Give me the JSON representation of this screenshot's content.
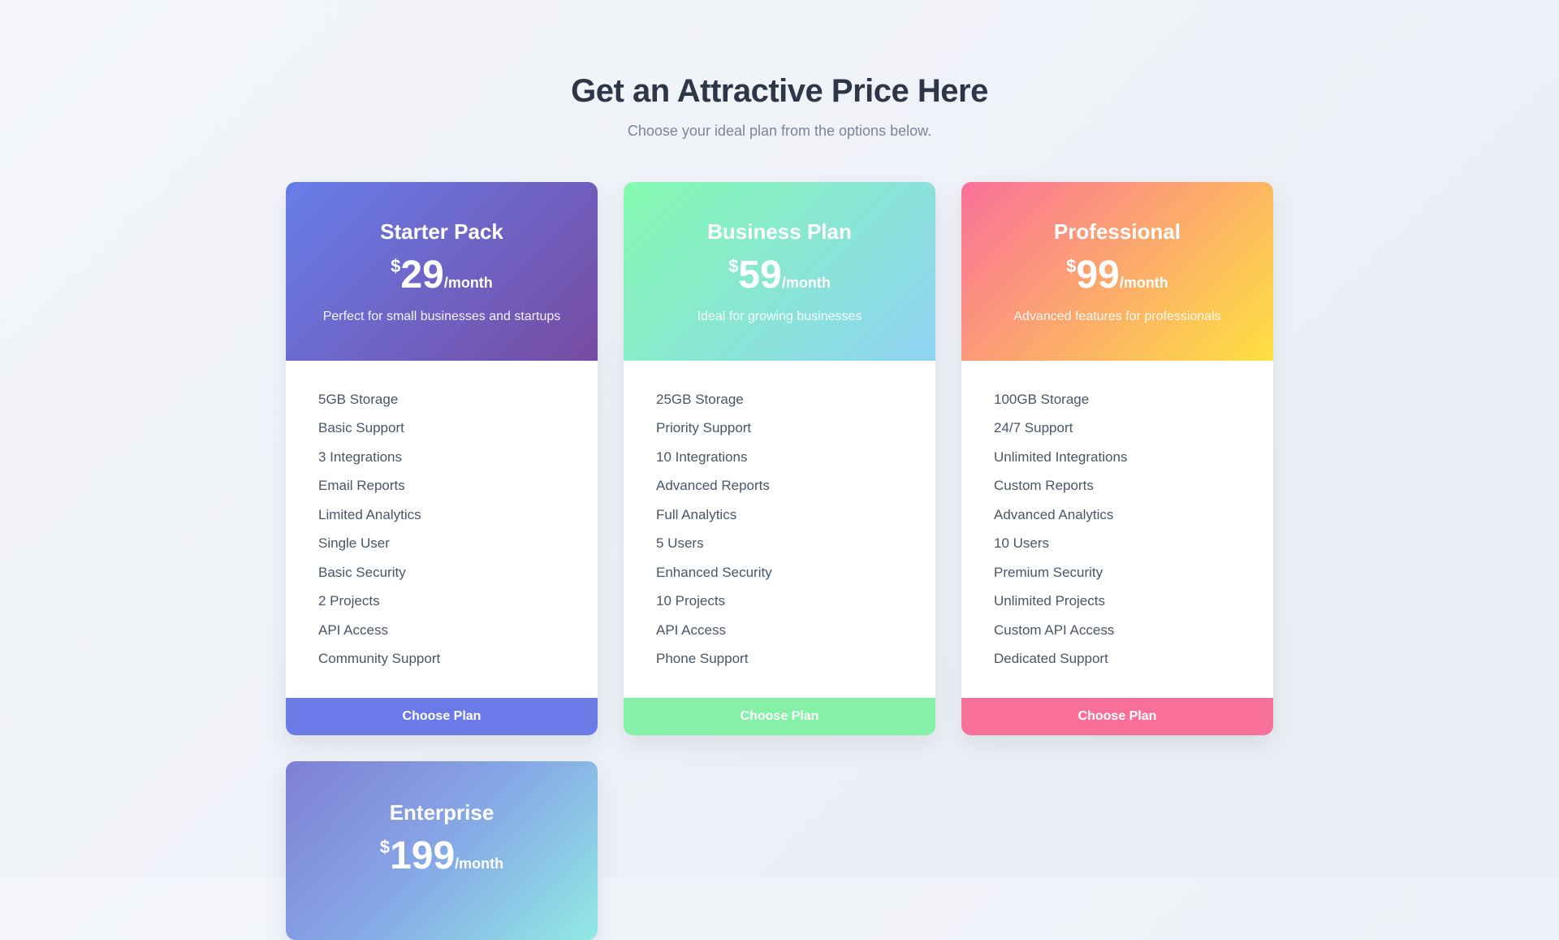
{
  "page": {
    "title": "Get an Attractive Price Here",
    "subtitle": "Choose your ideal plan from the options below."
  },
  "plans": [
    {
      "name": "Starter Pack",
      "currency": "$",
      "price": "29",
      "period": "/month",
      "description": "Perfect for small businesses and startups",
      "features": [
        "5GB Storage",
        "Basic Support",
        "3 Integrations",
        "Email Reports",
        "Limited Analytics",
        "Single User",
        "Basic Security",
        "2 Projects",
        "API Access",
        "Community Support"
      ],
      "cta": "Choose Plan",
      "colors": {
        "header_from": "#667eea",
        "header_to": "#764ba2",
        "button": "#6c7ae8"
      }
    },
    {
      "name": "Business Plan",
      "currency": "$",
      "price": "59",
      "period": "/month",
      "description": "Ideal for growing businesses",
      "features": [
        "25GB Storage",
        "Priority Support",
        "10 Integrations",
        "Advanced Reports",
        "Full Analytics",
        "5 Users",
        "Enhanced Security",
        "10 Projects",
        "API Access",
        "Phone Support"
      ],
      "cta": "Choose Plan",
      "colors": {
        "header_from": "#84fab0",
        "header_to": "#8fd3f4",
        "button": "#84f0a8"
      }
    },
    {
      "name": "Professional",
      "currency": "$",
      "price": "99",
      "period": "/month",
      "description": "Advanced features for professionals",
      "features": [
        "100GB Storage",
        "24/7 Support",
        "Unlimited Integrations",
        "Custom Reports",
        "Advanced Analytics",
        "10 Users",
        "Premium Security",
        "Unlimited Projects",
        "Custom API Access",
        "Dedicated Support"
      ],
      "cta": "Choose Plan",
      "colors": {
        "header_from": "#fa709a",
        "header_to": "#fee140",
        "button": "#f8709a"
      }
    },
    {
      "name": "Enterprise",
      "currency": "$",
      "price": "199",
      "period": "/month",
      "colors": {
        "header_from": "#7f7fd5",
        "header_via": "#86a8e7",
        "header_to": "#91eae4"
      }
    }
  ]
}
